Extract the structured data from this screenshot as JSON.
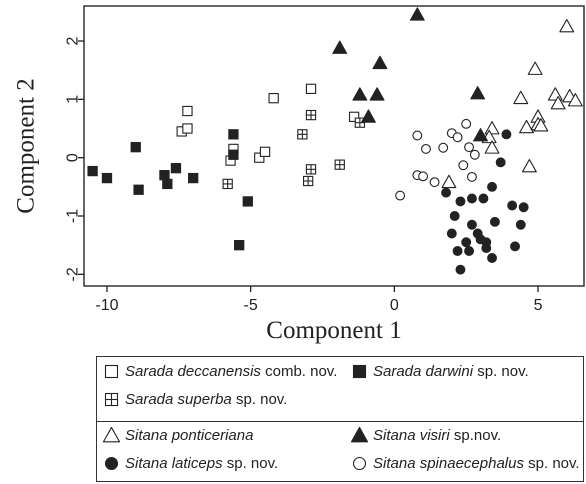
{
  "chart_data": {
    "type": "scatter",
    "xlabel": "Component 1",
    "ylabel": "Component 2",
    "xlim": [
      -10.8,
      6.6
    ],
    "ylim": [
      -2.2,
      2.6
    ],
    "xticks": [
      "-10",
      "-5",
      "0",
      "5"
    ],
    "xtick_values": [
      -10,
      -5,
      0,
      5
    ],
    "yticks": [
      "-2",
      "-1",
      "0",
      "1",
      "2"
    ],
    "ytick_values": [
      -2,
      -1,
      0,
      1,
      2
    ],
    "grid": false,
    "legend_position": "bottom",
    "series": [
      {
        "key": "deccanensis",
        "marker": "square-open",
        "legend": {
          "genus": "Sarada",
          "species": "deccanensis",
          "suffix": "comb. nov."
        },
        "points": [
          [
            -7.2,
            0.8
          ],
          [
            -7.4,
            0.45
          ],
          [
            -7.2,
            0.5
          ],
          [
            -5.6,
            0.15
          ],
          [
            -5.7,
            -0.05
          ],
          [
            -4.7,
            0.0
          ],
          [
            -4.5,
            0.1
          ],
          [
            -4.2,
            1.02
          ],
          [
            -2.9,
            1.18
          ],
          [
            -1.4,
            0.7
          ]
        ]
      },
      {
        "key": "darwini",
        "marker": "square-filled",
        "legend": {
          "genus": "Sarada",
          "species": "darwini",
          "suffix": "sp. nov."
        },
        "points": [
          [
            -10.5,
            -0.23
          ],
          [
            -10.0,
            -0.35
          ],
          [
            -9.0,
            0.18
          ],
          [
            -8.9,
            -0.55
          ],
          [
            -8.0,
            -0.3
          ],
          [
            -7.6,
            -0.18
          ],
          [
            -7.9,
            -0.45
          ],
          [
            -7.0,
            -0.35
          ],
          [
            -5.6,
            0.4
          ],
          [
            -5.6,
            0.05
          ],
          [
            -5.1,
            -0.75
          ],
          [
            -5.4,
            -1.5
          ]
        ]
      },
      {
        "key": "superba",
        "marker": "square-cross",
        "legend": {
          "genus": "Sarada",
          "species": "superba",
          "suffix": "sp. nov."
        },
        "points": [
          [
            -5.8,
            -0.45
          ],
          [
            -3.2,
            0.4
          ],
          [
            -2.9,
            0.73
          ],
          [
            -2.9,
            -0.2
          ],
          [
            -3.0,
            -0.4
          ],
          [
            -1.9,
            -0.12
          ],
          [
            -1.2,
            0.6
          ]
        ]
      },
      {
        "key": "ponticeriana",
        "marker": "triangle-open",
        "legend": {
          "genus": "Sitana",
          "species": "ponticeriana",
          "suffix": ""
        },
        "points": [
          [
            6.0,
            2.25
          ],
          [
            4.9,
            1.52
          ],
          [
            4.4,
            1.02
          ],
          [
            5.6,
            1.08
          ],
          [
            6.1,
            1.05
          ],
          [
            6.3,
            0.98
          ],
          [
            5.7,
            0.93
          ],
          [
            5.0,
            0.7
          ],
          [
            4.6,
            0.52
          ],
          [
            5.0,
            0.57
          ],
          [
            5.1,
            0.55
          ],
          [
            3.4,
            0.5
          ],
          [
            3.3,
            0.35
          ],
          [
            3.4,
            0.17
          ],
          [
            4.7,
            -0.15
          ],
          [
            1.9,
            -0.42
          ]
        ]
      },
      {
        "key": "visiri",
        "marker": "triangle-filled",
        "legend": {
          "genus": "Sitana",
          "species": "visiri",
          "suffix": "sp.nov."
        },
        "points": [
          [
            0.8,
            2.45
          ],
          [
            -1.9,
            1.88
          ],
          [
            -0.5,
            1.62
          ],
          [
            -1.2,
            1.08
          ],
          [
            -0.6,
            1.08
          ],
          [
            -0.9,
            0.7
          ],
          [
            2.9,
            1.1
          ],
          [
            3.0,
            0.38
          ]
        ]
      },
      {
        "key": "laticeps",
        "marker": "circle-filled",
        "legend": {
          "genus": "Sitana",
          "species": "laticeps",
          "suffix": "sp. nov."
        },
        "points": [
          [
            3.9,
            0.4
          ],
          [
            3.7,
            -0.08
          ],
          [
            3.4,
            -0.5
          ],
          [
            1.8,
            -0.6
          ],
          [
            2.3,
            -0.75
          ],
          [
            2.7,
            -0.7
          ],
          [
            3.1,
            -0.7
          ],
          [
            2.1,
            -1.0
          ],
          [
            4.1,
            -0.82
          ],
          [
            4.5,
            -0.85
          ],
          [
            2.7,
            -1.15
          ],
          [
            3.5,
            -1.1
          ],
          [
            4.4,
            -1.15
          ],
          [
            2.0,
            -1.3
          ],
          [
            2.9,
            -1.3
          ],
          [
            3.0,
            -1.4
          ],
          [
            3.2,
            -1.45
          ],
          [
            2.5,
            -1.45
          ],
          [
            2.2,
            -1.6
          ],
          [
            2.6,
            -1.6
          ],
          [
            3.2,
            -1.55
          ],
          [
            3.4,
            -1.72
          ],
          [
            4.2,
            -1.52
          ],
          [
            2.3,
            -1.92
          ]
        ]
      },
      {
        "key": "spinaecephalus",
        "marker": "circle-open",
        "legend": {
          "genus": "Sitana",
          "species": "spinaecephalus",
          "suffix": "sp. nov."
        },
        "points": [
          [
            0.2,
            -0.65
          ],
          [
            0.8,
            -0.3
          ],
          [
            1.0,
            -0.32
          ],
          [
            1.4,
            -0.42
          ],
          [
            0.8,
            0.38
          ],
          [
            1.1,
            0.15
          ],
          [
            1.7,
            0.17
          ],
          [
            2.0,
            0.42
          ],
          [
            2.2,
            0.35
          ],
          [
            2.5,
            0.58
          ],
          [
            2.6,
            0.18
          ],
          [
            2.8,
            0.05
          ],
          [
            2.4,
            -0.13
          ],
          [
            2.7,
            -0.33
          ]
        ]
      }
    ]
  },
  "legend_groups": [
    [
      [
        "deccanensis",
        "darwini"
      ],
      [
        "superba"
      ]
    ],
    [
      [
        "ponticeriana",
        "visiri"
      ],
      [
        "laticeps",
        "spinaecephalus"
      ]
    ]
  ],
  "colors": {
    "ink": "#222222",
    "frame": "#333333",
    "background": "#ffffff"
  }
}
